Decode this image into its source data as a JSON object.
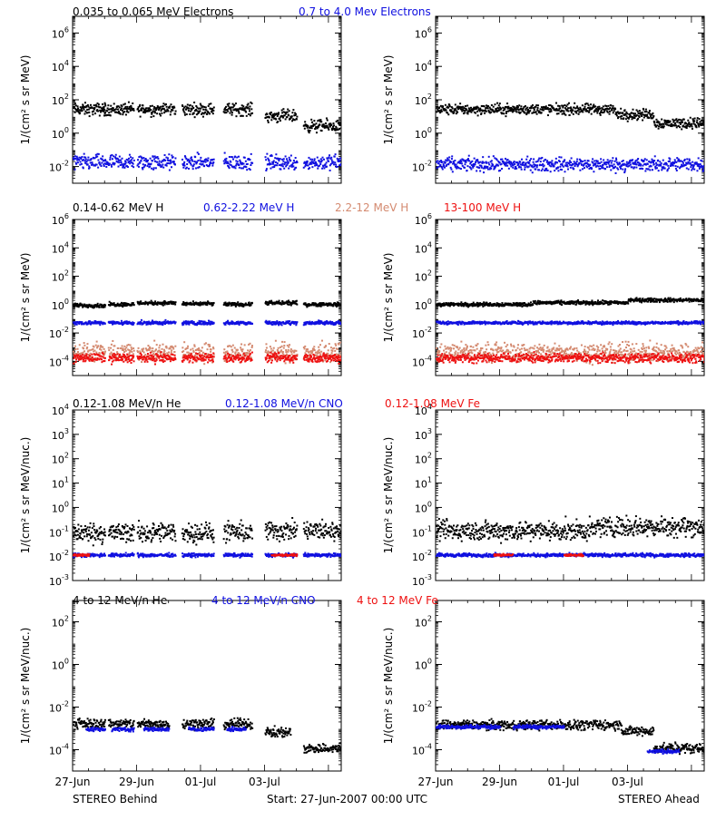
{
  "colors": {
    "black": "#000000",
    "blue": "#1010e0",
    "salmon": "#d48a70",
    "red": "#ee1111"
  },
  "footer": {
    "left": "STEREO Behind",
    "center": "Start: 27-Jun-2007 00:00 UTC",
    "right": "STEREO Ahead",
    "x_ticks": [
      "27-Jun",
      "29-Jun",
      "01-Jul",
      "03-Jul"
    ]
  },
  "chart_data": [
    {
      "type": "scatter",
      "row": 0,
      "side": "behind",
      "ylabel": "1/(cm² s sr MeV)",
      "yscale": "log",
      "ylim": [
        0.001,
        10000000
      ],
      "ytick_exps": [
        -2,
        0,
        2,
        4,
        6
      ],
      "titles": [
        {
          "text": "0.035 to 0.065 MeV Electrons",
          "color": "black"
        },
        {
          "text": "0.7 to 4.0 Mev Electrons",
          "color": "blue"
        }
      ],
      "series": [
        {
          "color": "black",
          "level": 30,
          "spread": 0.4,
          "segments": [
            [
              0,
              0.5,
              1
            ],
            [
              0.45,
              0.95,
              1
            ],
            [
              1.0,
              1.6,
              1
            ],
            [
              1.7,
              2.2,
              1
            ],
            [
              2.35,
              2.8,
              1
            ],
            [
              3.0,
              3.5,
              0.4
            ],
            [
              3.6,
              4.2,
              0.1
            ]
          ]
        },
        {
          "color": "blue",
          "level": 0.02,
          "spread": 0.5,
          "segments": [
            [
              0,
              0.5,
              1
            ],
            [
              0.5,
              0.95,
              1
            ],
            [
              1.0,
              1.6,
              1
            ],
            [
              1.7,
              2.2,
              1
            ],
            [
              2.35,
              2.8,
              1
            ],
            [
              3.0,
              3.5,
              1
            ],
            [
              3.6,
              4.2,
              1
            ]
          ]
        }
      ]
    },
    {
      "type": "scatter",
      "row": 0,
      "side": "ahead",
      "ylabel": "1/(cm² s sr MeV)",
      "yscale": "log",
      "ylim": [
        0.001,
        10000000
      ],
      "ytick_exps": [
        -2,
        0,
        2,
        4,
        6
      ],
      "titles": [],
      "series": [
        {
          "color": "black",
          "level": 30,
          "spread": 0.35,
          "segments": [
            [
              0,
              2.8,
              1
            ],
            [
              2.8,
              3.4,
              0.5
            ],
            [
              3.4,
              4.2,
              0.15
            ]
          ]
        },
        {
          "color": "blue",
          "level": 0.015,
          "spread": 0.45,
          "segments": [
            [
              0,
              4.2,
              1
            ]
          ]
        }
      ]
    },
    {
      "type": "scatter",
      "row": 1,
      "side": "behind",
      "ylabel": "1/(cm² s sr MeV)",
      "yscale": "log",
      "ylim": [
        1e-05,
        1000000
      ],
      "ytick_exps": [
        -4,
        -2,
        0,
        2,
        4,
        6
      ],
      "titles": [
        {
          "text": "0.14-0.62 MeV H",
          "color": "black"
        },
        {
          "text": "0.62-2.22 MeV H",
          "color": "blue"
        },
        {
          "text": "2.2-12 MeV H",
          "color": "salmon"
        },
        {
          "text": "13-100 MeV H",
          "color": "red"
        }
      ],
      "series": [
        {
          "color": "salmon",
          "level": 0.0005,
          "spread": 0.7,
          "segments": [
            [
              0,
              0.5,
              1
            ],
            [
              0.55,
              0.95,
              1
            ],
            [
              1.0,
              1.6,
              1
            ],
            [
              1.7,
              2.2,
              1
            ],
            [
              2.35,
              2.8,
              1
            ],
            [
              3.0,
              3.5,
              1
            ],
            [
              3.6,
              4.2,
              1
            ]
          ]
        },
        {
          "color": "red",
          "level": 0.0002,
          "spread": 0.35,
          "segments": [
            [
              0,
              0.5,
              1
            ],
            [
              0.55,
              0.95,
              1
            ],
            [
              1.0,
              1.6,
              1
            ],
            [
              1.7,
              2.2,
              1
            ],
            [
              2.35,
              2.8,
              1
            ],
            [
              3.0,
              3.5,
              1
            ],
            [
              3.6,
              4.2,
              1
            ]
          ]
        },
        {
          "color": "blue",
          "level": 0.06,
          "spread": 0.15,
          "segments": [
            [
              0,
              0.5,
              1
            ],
            [
              0.55,
              0.95,
              1
            ],
            [
              1.0,
              1.6,
              1
            ],
            [
              1.7,
              2.2,
              1
            ],
            [
              2.35,
              2.8,
              1
            ],
            [
              3.0,
              3.5,
              1
            ],
            [
              3.6,
              4.2,
              1
            ]
          ]
        },
        {
          "color": "black",
          "level": 1.0,
          "spread": 0.15,
          "segments": [
            [
              0,
              0.5,
              1
            ],
            [
              0.55,
              0.95,
              1.2
            ],
            [
              1.0,
              1.6,
              1.5
            ],
            [
              1.7,
              2.2,
              1.3
            ],
            [
              2.35,
              2.8,
              1.2
            ],
            [
              3.0,
              3.5,
              1.5
            ],
            [
              3.6,
              4.2,
              1.2
            ]
          ]
        }
      ]
    },
    {
      "type": "scatter",
      "row": 1,
      "side": "ahead",
      "ylabel": "1/(cm² s sr MeV)",
      "yscale": "log",
      "ylim": [
        1e-05,
        1000000
      ],
      "ytick_exps": [
        -4,
        -2,
        0,
        2,
        4,
        6
      ],
      "titles": [],
      "series": [
        {
          "color": "salmon",
          "level": 0.0005,
          "spread": 0.7,
          "segments": [
            [
              0,
              4.2,
              1
            ]
          ]
        },
        {
          "color": "red",
          "level": 0.0002,
          "spread": 0.35,
          "segments": [
            [
              0,
              4.2,
              1
            ]
          ]
        },
        {
          "color": "blue",
          "level": 0.06,
          "spread": 0.12,
          "segments": [
            [
              0,
              4.2,
              1
            ]
          ]
        },
        {
          "color": "black",
          "level": 1.2,
          "spread": 0.15,
          "segments": [
            [
              0,
              1.5,
              1
            ],
            [
              1.5,
              3.0,
              1.3
            ],
            [
              3.0,
              4.2,
              2
            ]
          ]
        }
      ]
    },
    {
      "type": "scatter",
      "row": 2,
      "side": "behind",
      "ylabel": "1/(cm² s sr MeV/nuc.)",
      "yscale": "log",
      "ylim": [
        0.001,
        10000
      ],
      "ytick_exps": [
        -3,
        -2,
        -1,
        0,
        1,
        2,
        3,
        4
      ],
      "titles": [
        {
          "text": "0.12-1.08 MeV/n He",
          "color": "black"
        },
        {
          "text": "0.12-1.08 MeV/n CNO",
          "color": "blue"
        },
        {
          "text": "0.12-1.08 MeV Fe",
          "color": "red"
        }
      ],
      "series": [
        {
          "color": "black",
          "level": 0.1,
          "spread": 0.45,
          "segments": [
            [
              0,
              0.5,
              1
            ],
            [
              0.55,
              0.95,
              1
            ],
            [
              1.0,
              1.6,
              1
            ],
            [
              1.7,
              2.2,
              1
            ],
            [
              2.35,
              2.8,
              1
            ],
            [
              3.0,
              3.5,
              1.2
            ],
            [
              3.6,
              4.2,
              1.2
            ]
          ]
        },
        {
          "color": "blue",
          "level": 0.012,
          "spread": 0.08,
          "segments": [
            [
              0,
              0.5,
              1
            ],
            [
              0.55,
              0.95,
              1
            ],
            [
              1.0,
              1.6,
              1
            ],
            [
              1.7,
              2.2,
              1
            ],
            [
              2.35,
              2.8,
              1
            ],
            [
              3.0,
              3.5,
              1
            ],
            [
              3.6,
              4.2,
              1
            ]
          ]
        },
        {
          "color": "red",
          "level": 0.012,
          "spread": 0.05,
          "segments": [
            [
              0,
              0.25,
              1
            ],
            [
              3.1,
              3.5,
              1
            ]
          ]
        }
      ]
    },
    {
      "type": "scatter",
      "row": 2,
      "side": "ahead",
      "ylabel": "1/(cm² s sr MeV/nuc.)",
      "yscale": "log",
      "ylim": [
        0.001,
        10000
      ],
      "ytick_exps": [
        -3,
        -2,
        -1,
        0,
        1,
        2,
        3,
        4
      ],
      "titles": [],
      "series": [
        {
          "color": "black",
          "level": 0.12,
          "spread": 0.45,
          "segments": [
            [
              0,
              2.5,
              1
            ],
            [
              2.5,
              4.2,
              1.5
            ]
          ]
        },
        {
          "color": "blue",
          "level": 0.012,
          "spread": 0.08,
          "segments": [
            [
              0,
              4.2,
              1
            ]
          ]
        },
        {
          "color": "red",
          "level": 0.012,
          "spread": 0.05,
          "segments": [
            [
              0.9,
              1.2,
              1
            ],
            [
              2.0,
              2.3,
              1
            ]
          ]
        }
      ]
    },
    {
      "type": "scatter",
      "row": 3,
      "side": "behind",
      "ylabel": "1/(cm² s sr MeV/nuc.)",
      "yscale": "log",
      "ylim": [
        1e-05,
        1000
      ],
      "ytick_exps": [
        -4,
        -2,
        0,
        2
      ],
      "titles": [
        {
          "text": "4 to 12 MeV/n He",
          "color": "black"
        },
        {
          "text": "4 to 12 MeV/n CNO",
          "color": "blue"
        },
        {
          "text": "4 to 12 MeV Fe",
          "color": "red"
        }
      ],
      "series": [
        {
          "color": "black",
          "level": 0.0018,
          "spread": 0.25,
          "segments": [
            [
              0,
              0.5,
              1
            ],
            [
              0.55,
              0.95,
              1
            ],
            [
              1.0,
              1.5,
              1
            ],
            [
              1.7,
              2.2,
              1
            ],
            [
              2.35,
              2.8,
              1
            ],
            [
              3.0,
              3.4,
              0.4
            ],
            [
              3.6,
              4.2,
              0.07
            ]
          ]
        },
        {
          "color": "blue",
          "level": 0.001,
          "spread": 0.1,
          "segments": [
            [
              0.2,
              0.5,
              1
            ],
            [
              0.6,
              0.95,
              1
            ],
            [
              1.1,
              1.5,
              1
            ],
            [
              1.8,
              2.2,
              1
            ],
            [
              2.4,
              2.7,
              1
            ]
          ]
        }
      ]
    },
    {
      "type": "scatter",
      "row": 3,
      "side": "ahead",
      "ylabel": "1/(cm² s sr MeV/nuc.)",
      "yscale": "log",
      "ylim": [
        1e-05,
        1000
      ],
      "ytick_exps": [
        -4,
        -2,
        0,
        2
      ],
      "titles": [],
      "series": [
        {
          "color": "black",
          "level": 0.0016,
          "spread": 0.25,
          "segments": [
            [
              0,
              2.9,
              1
            ],
            [
              2.9,
              3.4,
              0.5
            ],
            [
              3.4,
              4.2,
              0.08
            ]
          ]
        },
        {
          "color": "blue",
          "level": 0.0013,
          "spread": 0.1,
          "segments": [
            [
              0,
              1.0,
              1
            ],
            [
              1.2,
              2.0,
              1
            ],
            [
              3.3,
              3.8,
              0.07
            ]
          ]
        }
      ]
    }
  ]
}
